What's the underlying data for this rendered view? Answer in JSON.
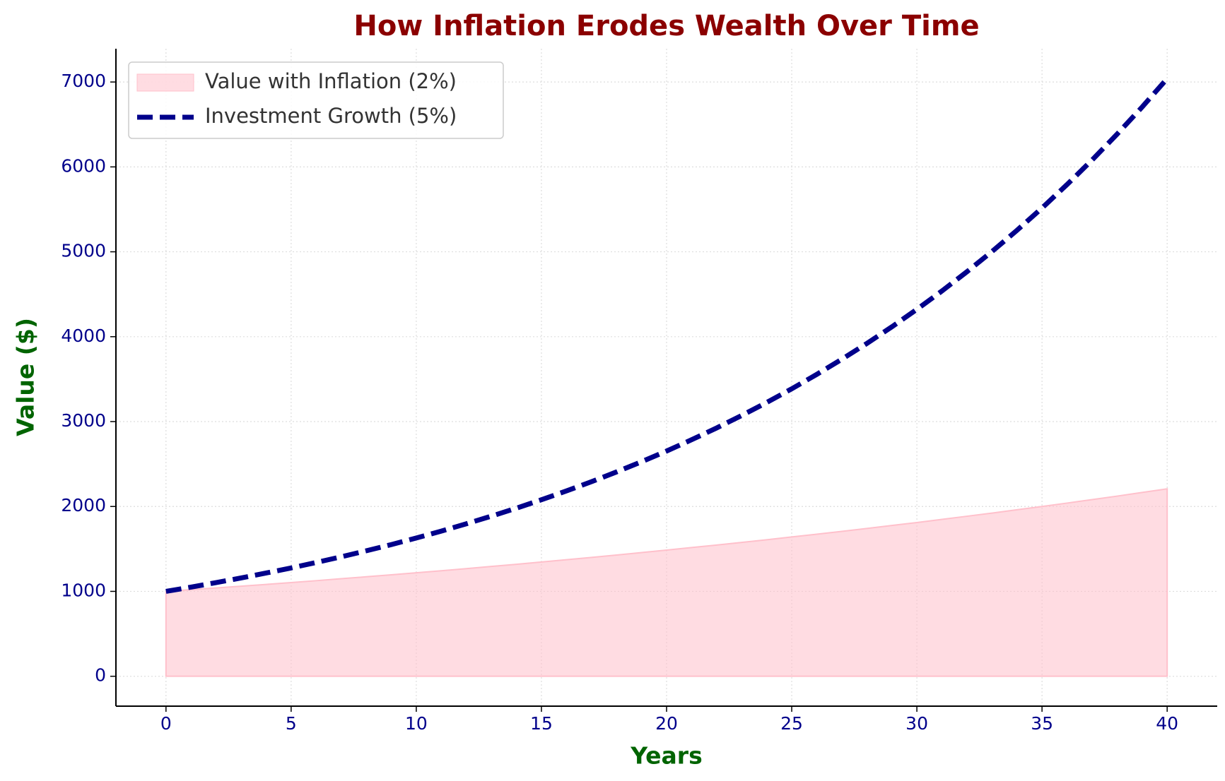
{
  "chart_data": {
    "type": "line",
    "title": "How Inflation Erodes Wealth Over Time",
    "x_label": "Years",
    "y_label": "Value ($)",
    "x": [
      0,
      1,
      2,
      3,
      4,
      5,
      6,
      7,
      8,
      9,
      10,
      11,
      12,
      13,
      14,
      15,
      16,
      17,
      18,
      19,
      20,
      21,
      22,
      23,
      24,
      25,
      26,
      27,
      28,
      29,
      30,
      31,
      32,
      33,
      34,
      35,
      36,
      37,
      38,
      39,
      40
    ],
    "series": [
      {
        "name": "Value with Inflation (2%)",
        "type": "area",
        "color": "#ffc0cb",
        "values": [
          1000,
          1020,
          1040,
          1061,
          1082,
          1104,
          1126,
          1149,
          1172,
          1195,
          1219,
          1243,
          1268,
          1294,
          1319,
          1346,
          1373,
          1400,
          1428,
          1457,
          1486,
          1516,
          1546,
          1577,
          1608,
          1641,
          1673,
          1707,
          1741,
          1776,
          1811,
          1848,
          1885,
          1922,
          1961,
          2000,
          2040,
          2081,
          2122,
          2165,
          2208
        ]
      },
      {
        "name": "Investment Growth (5%)",
        "type": "line",
        "dash": true,
        "color": "#00008b",
        "values": [
          1000,
          1050,
          1103,
          1158,
          1216,
          1276,
          1340,
          1407,
          1478,
          1551,
          1629,
          1710,
          1796,
          1886,
          1980,
          2079,
          2183,
          2292,
          2407,
          2527,
          2653,
          2786,
          2925,
          3072,
          3225,
          3386,
          3556,
          3734,
          3920,
          4116,
          4322,
          4538,
          4765,
          5003,
          5253,
          5516,
          5792,
          6081,
          6386,
          6705,
          7040
        ]
      }
    ],
    "xlim": [
      -2,
      42
    ],
    "xticks": [
      0,
      5,
      10,
      15,
      20,
      25,
      30,
      35,
      40
    ],
    "ylim": [
      -352,
      7392
    ],
    "yticks": [
      0,
      1000,
      2000,
      3000,
      4000,
      5000,
      6000,
      7000
    ],
    "grid": true,
    "legend": "upper left"
  }
}
